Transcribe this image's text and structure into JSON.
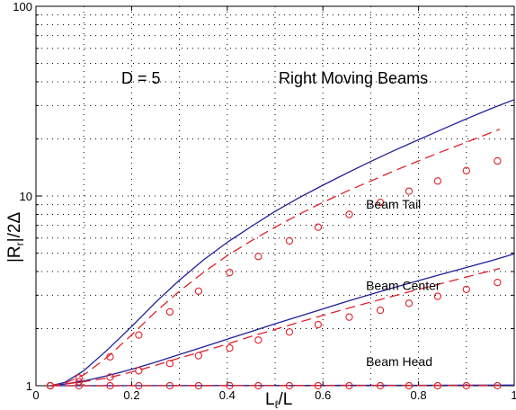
{
  "chart_data": {
    "type": "line",
    "title": "",
    "xlabel_main": "L",
    "xlabel_sub": "ℓ",
    "xlabel_tail": "/L",
    "ylabel_prefix": "|R",
    "ylabel_sub": "r",
    "ylabel_suffix": "|/2Δ",
    "xlim": [
      0,
      1
    ],
    "ylim": [
      1,
      100
    ],
    "yscale": "log",
    "grid": true,
    "xticks": [
      {
        "value": 0,
        "label": "0"
      },
      {
        "value": 0.2,
        "label": "0.2"
      },
      {
        "value": 0.4,
        "label": "0.4"
      },
      {
        "value": 0.6,
        "label": "0.6"
      },
      {
        "value": 0.8,
        "label": "0.8"
      },
      {
        "value": 1,
        "label": "1"
      }
    ],
    "yticks": [
      {
        "value": 1,
        "label": "1"
      },
      {
        "value": 10,
        "label": "10"
      },
      {
        "value": 100,
        "label": "100"
      }
    ],
    "annotations": {
      "d_label": "D = 5",
      "group_label": "Right Moving Beams"
    },
    "colors": {
      "solid": "#1f1f9a",
      "dashed": "#e0202a"
    },
    "series": [
      {
        "label": "Beam Tail",
        "label_at": {
          "x": 0.69,
          "y": 8.6
        },
        "solid": {
          "x": [
            0.03,
            0.06,
            0.1,
            0.15,
            0.2,
            0.25,
            0.3,
            0.35,
            0.4,
            0.45,
            0.5,
            0.55,
            0.6,
            0.65,
            0.7,
            0.75,
            0.8,
            0.85,
            0.9,
            0.95,
            1.0
          ],
          "y": [
            1.0,
            1.04,
            1.2,
            1.55,
            2.05,
            2.75,
            3.6,
            4.6,
            5.7,
            6.9,
            8.3,
            9.8,
            11.4,
            13.2,
            15.2,
            17.4,
            19.8,
            22.5,
            25.5,
            28.8,
            32.2
          ]
        },
        "dashed": {
          "x": [
            0.03,
            0.06,
            0.1,
            0.15,
            0.2,
            0.25,
            0.3,
            0.35,
            0.4,
            0.45,
            0.5,
            0.55,
            0.6,
            0.65,
            0.7,
            0.75,
            0.8,
            0.85,
            0.9,
            0.97
          ],
          "y": [
            1.0,
            1.03,
            1.14,
            1.42,
            1.85,
            2.45,
            3.15,
            3.95,
            4.85,
            5.8,
            6.85,
            8.0,
            9.25,
            10.6,
            12.0,
            13.6,
            15.3,
            17.2,
            19.2,
            22.5
          ]
        },
        "markers": {
          "x": [
            0.03,
            0.09,
            0.155,
            0.215,
            0.28,
            0.34,
            0.405,
            0.465,
            0.53,
            0.59,
            0.655,
            0.72,
            0.78,
            0.84,
            0.9,
            0.965
          ],
          "y": [
            1.0,
            1.1,
            1.42,
            1.85,
            2.45,
            3.15,
            3.95,
            4.8,
            5.8,
            6.85,
            8.0,
            9.25,
            10.6,
            12.0,
            13.6,
            15.3
          ]
        }
      },
      {
        "label": "Beam Center",
        "label_at": {
          "x": 0.69,
          "y": 3.2
        },
        "solid": {
          "x": [
            0.03,
            0.06,
            0.1,
            0.15,
            0.2,
            0.25,
            0.3,
            0.35,
            0.4,
            0.45,
            0.5,
            0.55,
            0.6,
            0.65,
            0.7,
            0.75,
            0.8,
            0.85,
            0.9,
            0.95,
            1.0
          ],
          "y": [
            1.0,
            1.02,
            1.06,
            1.13,
            1.22,
            1.33,
            1.46,
            1.6,
            1.76,
            1.93,
            2.12,
            2.32,
            2.54,
            2.78,
            3.03,
            3.3,
            3.58,
            3.88,
            4.2,
            4.55,
            4.95
          ]
        },
        "dashed": {
          "x": [
            0.03,
            0.06,
            0.1,
            0.15,
            0.2,
            0.25,
            0.3,
            0.35,
            0.4,
            0.45,
            0.5,
            0.55,
            0.6,
            0.65,
            0.7,
            0.75,
            0.8,
            0.85,
            0.9,
            0.97
          ],
          "y": [
            1.0,
            1.02,
            1.05,
            1.1,
            1.18,
            1.28,
            1.4,
            1.52,
            1.66,
            1.82,
            1.98,
            2.16,
            2.35,
            2.55,
            2.76,
            2.98,
            3.22,
            3.47,
            3.74,
            4.15
          ]
        },
        "markers": {
          "x": [
            0.03,
            0.09,
            0.155,
            0.215,
            0.28,
            0.34,
            0.405,
            0.465,
            0.53,
            0.59,
            0.655,
            0.72,
            0.78,
            0.84,
            0.9,
            0.965
          ],
          "y": [
            1.0,
            1.05,
            1.11,
            1.2,
            1.31,
            1.44,
            1.58,
            1.74,
            1.92,
            2.1,
            2.3,
            2.5,
            2.72,
            2.96,
            3.22,
            3.5
          ]
        }
      },
      {
        "label": "Beam Head",
        "label_at": {
          "x": 0.69,
          "y": 1.27
        },
        "solid": {
          "x": [
            0.03,
            0.2,
            0.4,
            0.6,
            0.8,
            1.0
          ],
          "y": [
            1.0,
            1.001,
            1.002,
            1.004,
            1.006,
            1.008
          ]
        },
        "dashed": {
          "x": [
            0.03,
            0.2,
            0.4,
            0.6,
            0.8,
            0.97
          ],
          "y": [
            1.0,
            1.0,
            1.001,
            1.002,
            1.003,
            1.004
          ]
        },
        "markers": {
          "x": [
            0.03,
            0.09,
            0.155,
            0.215,
            0.28,
            0.34,
            0.405,
            0.465,
            0.53,
            0.59,
            0.655,
            0.72,
            0.78,
            0.84,
            0.9,
            0.965
          ],
          "y": [
            1.0,
            1.0,
            1.0,
            1.0,
            1.0,
            1.0,
            1.0,
            1.0,
            1.0,
            1.0,
            1.0,
            1.0,
            1.0,
            1.0,
            1.0,
            1.0
          ]
        }
      }
    ]
  }
}
